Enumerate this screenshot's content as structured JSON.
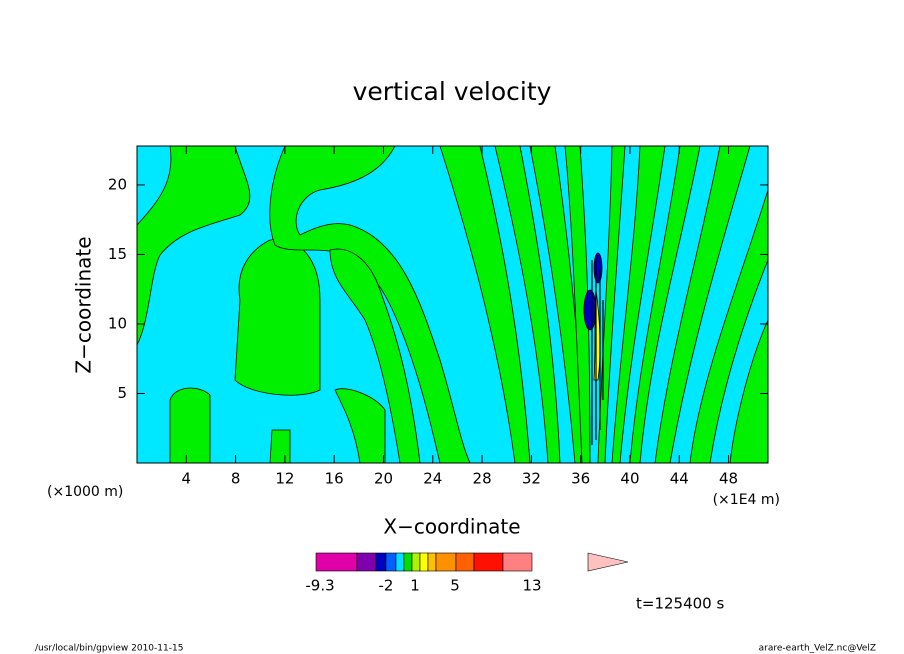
{
  "chart_data": {
    "type": "contour",
    "title": "vertical velocity",
    "x_label": "X−coordinate",
    "y_label": "Z−coordinate",
    "x_unit_label": "(×1E4 m)",
    "y_unit_label": "(×1000 m)",
    "xlim": [
      0,
      51.2
    ],
    "xticks": [
      4,
      8,
      12,
      16,
      20,
      24,
      28,
      32,
      36,
      40,
      44,
      48
    ],
    "ylim": [
      0,
      22.8
    ],
    "yticks": [
      5,
      10,
      15,
      20
    ],
    "colorbar": {
      "colors": [
        "#e000a8",
        "#8000b0",
        "#0000c0",
        "#0060ff",
        "#00e0ff",
        "#00e000",
        "#b0f000",
        "#ffff00",
        "#ffc000",
        "#ff9000",
        "#ff6000",
        "#ff1000",
        "#ff8080",
        "#ffc0c0"
      ],
      "ticks": [
        -9.3,
        -2,
        1,
        5,
        13
      ]
    },
    "annotation": "t=125400 s",
    "footer_left": "/usr/local/bin/gpview  2010-11-15",
    "footer_right": "arare-earth_VelZ.nc@VelZ"
  }
}
